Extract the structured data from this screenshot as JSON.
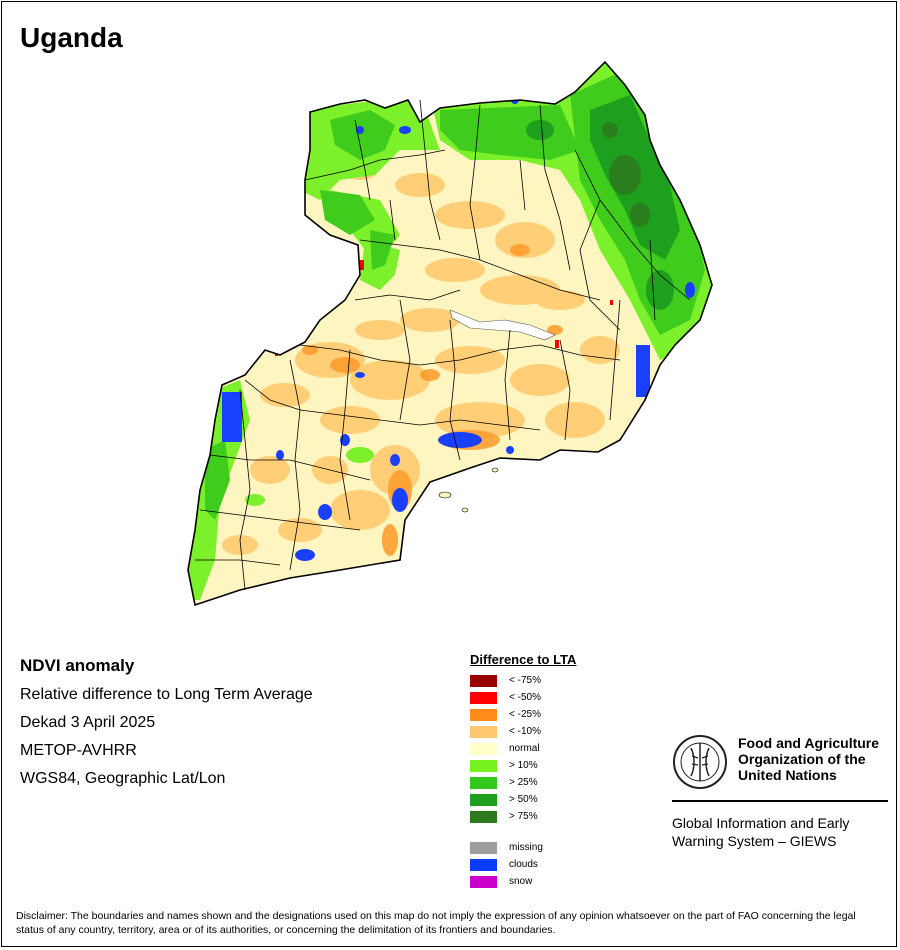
{
  "map": {
    "title": "Uganda",
    "product": {
      "name": "NDVI anomaly",
      "description": "Relative difference to Long Term Average",
      "period": "Dekad 3 April 2025",
      "sensor": "METOP-AVHRR",
      "projection": "WGS84, Geographic Lat/Lon"
    },
    "colors": {
      "normal_fill": "#fff5c0",
      "minus10": "#ffcc73",
      "minus25": "#ff9a2a",
      "plus10": "#7cf02a",
      "plus25": "#3fcc1c",
      "plus50": "#1ea01e",
      "plus75": "#2a7e1e",
      "clouds": "#1a40ff",
      "lake": "#ffffff",
      "border": "#000000"
    }
  },
  "legend": {
    "title": "Difference to LTA",
    "items": [
      {
        "label": "< -75%",
        "color": "#9a0000"
      },
      {
        "label": "< -50%",
        "color": "#ff0000"
      },
      {
        "label": "< -25%",
        "color": "#ff8c1a"
      },
      {
        "label": "< -10%",
        "color": "#ffc870"
      },
      {
        "label": "normal",
        "color": "#ffffc8"
      },
      {
        "label": "> 10%",
        "color": "#76f21e"
      },
      {
        "label": "> 25%",
        "color": "#33c81a"
      },
      {
        "label": "> 50%",
        "color": "#1ea01e"
      },
      {
        "label": "> 75%",
        "color": "#2d7a1e"
      }
    ],
    "extra_items": [
      {
        "label": "missing",
        "color": "#9c9c9c"
      },
      {
        "label": "clouds",
        "color": "#0a3cff"
      },
      {
        "label": "snow",
        "color": "#cc00cc"
      }
    ]
  },
  "organization": {
    "name_line1": "Food and Agriculture",
    "name_line2": "Organization of the",
    "name_line3": "United Nations",
    "system_line1": "Global Information and Early",
    "system_line2": "Warning System – GIEWS"
  },
  "disclaimer": "Disclaimer: The boundaries and names shown and the designations used on this map do not imply the expression of any opinion whatsoever on the part of FAO concerning the legal status of any country, territory, area or of its authorities, or concerning the delimitation of its frontiers and boundaries."
}
